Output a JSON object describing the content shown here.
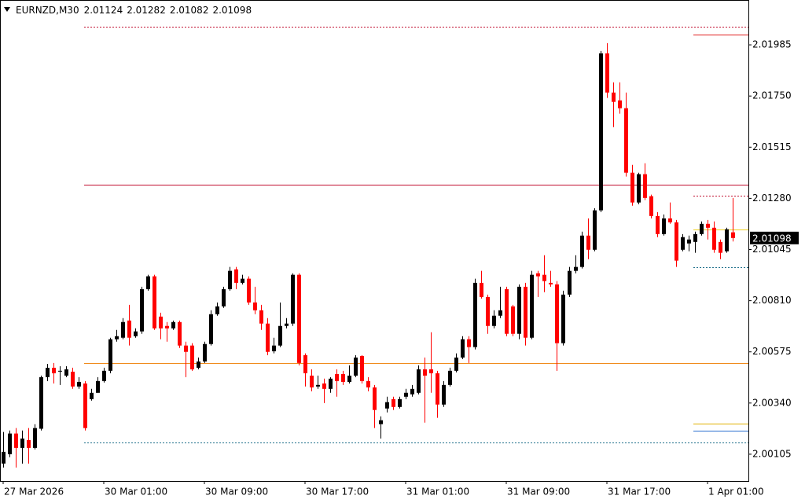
{
  "chart_data": {
    "type": "candlestick",
    "title": "EURNZD,M30",
    "up_color": "#000000",
    "down_color": "#ff0000",
    "ylim": [
      1.99982,
      2.02191
    ],
    "yticks": [
      2.00105,
      {
        "value": 2.0034,
        "label": "2.00340"
      },
      2.00575,
      {
        "value": 2.0081,
        "label": "2.00810"
      },
      2.01045,
      {
        "value": 2.0128,
        "label": "2.01280"
      },
      2.01515,
      {
        "value": 2.0175,
        "label": "2.01750"
      },
      2.01985
    ],
    "categories": [
      "27 Mar 2026",
      null,
      null,
      null,
      null,
      null,
      null,
      null,
      null,
      null,
      null,
      null,
      null,
      null,
      null,
      null,
      "30 Mar 01:00",
      null,
      null,
      null,
      null,
      null,
      null,
      null,
      null,
      null,
      null,
      null,
      null,
      null,
      null,
      null,
      "30 Mar 09:00",
      null,
      null,
      null,
      null,
      null,
      null,
      null,
      null,
      null,
      null,
      null,
      null,
      null,
      null,
      null,
      "30 Mar 17:00",
      null,
      null,
      null,
      null,
      null,
      null,
      null,
      null,
      null,
      null,
      null,
      null,
      null,
      null,
      null,
      "31 Mar 01:00",
      null,
      null,
      null,
      null,
      null,
      null,
      null,
      null,
      null,
      null,
      null,
      null,
      null,
      null,
      null,
      "31 Mar 09:00",
      null,
      null,
      null,
      null,
      null,
      null,
      null,
      null,
      null,
      null,
      null,
      null,
      null,
      null,
      null,
      "31 Mar 17:00",
      null,
      null,
      null,
      null,
      null,
      null,
      null,
      null,
      null,
      null,
      null,
      null,
      null,
      null,
      null,
      "1 Apr 01:00",
      null,
      null,
      null,
      null
    ],
    "open": [
      2.00062,
      2.00105,
      2.002,
      2.00134,
      2.0017,
      2.00134,
      2.00222,
      2.00459,
      2.00502,
      2.00488,
      2.00466,
      2.00484,
      2.00416,
      2.0043,
      2.00358,
      2.00387,
      2.00441,
      2.00488,
      2.00633,
      2.0064,
      2.00719,
      2.00647,
      2.00669,
      2.00863,
      2.00922,
      2.00737,
      2.00694,
      2.00683,
      2.00712,
      2.00604,
      2.00604,
      2.00502,
      2.00531,
      2.00611,
      2.00748,
      2.00784,
      2.00863,
      2.00954,
      2.00892,
      2.00911,
      2.00802,
      2.00766,
      2.00705,
      2.00578,
      2.00604,
      2.00694,
      2.00705,
      2.00929,
      2.0056,
      2.00466,
      2.00416,
      2.0043,
      2.00405,
      2.00473,
      2.00473,
      2.00437,
      2.00466,
      2.00556,
      2.00441,
      2.00412,
      2.00243,
      2.00315,
      2.00358,
      2.00322,
      2.00369,
      2.0038,
      2.00387,
      2.00495,
      2.00495,
      2.00477,
      2.00333,
      2.00423,
      2.00488,
      2.00549,
      2.00633,
      2.00597,
      2.00892,
      2.00827,
      2.00694,
      2.00741,
      2.00863,
      2.00784,
      2.00658,
      2.00874,
      2.0064,
      2.00936,
      2.00929,
      2.00892,
      2.00885,
      2.00615,
      2.00838,
      2.00947,
      2.00965,
      2.01109,
      2.01044,
      2.01225,
      2.01946,
      2.01766,
      2.0173,
      2.01694,
      2.01398,
      2.01261,
      2.01391,
      2.0129,
      2.01199,
      2.01116,
      2.01188,
      2.0117,
      2.01044,
      2.01073,
      2.0108,
      2.01116,
      2.01163,
      2.01145,
      2.0108,
      2.01037,
      2.01124
    ],
    "high": [
      2.00207,
      2.00214,
      2.00225,
      2.00214,
      2.00225,
      2.00243,
      2.00466,
      2.0052,
      2.00524,
      2.00509,
      2.00509,
      2.00502,
      2.00459,
      2.00441,
      2.00405,
      2.00459,
      2.00502,
      2.0064,
      2.00676,
      2.0073,
      2.00791,
      2.00683,
      2.00874,
      2.00929,
      2.00929,
      2.00755,
      2.00712,
      2.00719,
      2.00719,
      2.00622,
      2.00615,
      2.00549,
      2.00622,
      2.00766,
      2.00802,
      2.00874,
      2.00965,
      2.00965,
      2.00929,
      2.00922,
      2.00874,
      2.00791,
      2.0073,
      2.0064,
      2.00802,
      2.0073,
      2.00936,
      2.00936,
      2.00568,
      2.00495,
      2.00466,
      2.00452,
      2.00459,
      2.00495,
      2.00488,
      2.00513,
      2.0056,
      2.0056,
      2.00459,
      2.00423,
      2.00279,
      2.00369,
      2.00369,
      2.00369,
      2.00405,
      2.00423,
      2.00513,
      2.00549,
      2.00665,
      2.00488,
      2.00441,
      2.00502,
      2.00568,
      2.00647,
      2.00647,
      2.00911,
      2.00947,
      2.00838,
      2.00766,
      2.00874,
      2.00874,
      2.00791,
      2.00885,
      2.00892,
      2.00947,
      2.00947,
      2.01019,
      2.00947,
      2.009,
      2.00856,
      2.00965,
      2.01019,
      2.01127,
      2.01188,
      2.01235,
      2.01957,
      2.01993,
      2.01813,
      2.01813,
      2.01766,
      2.01434,
      2.01398,
      2.01441,
      2.01297,
      2.01217,
      2.01206,
      2.01261,
      2.01181,
      2.01116,
      2.01109,
      2.01127,
      2.01174,
      2.01181,
      2.01174,
      2.01091,
      2.01145,
      2.01282
    ],
    "low": [
      2.00044,
      2.00091,
      2.00044,
      2.00062,
      2.00062,
      2.00127,
      2.00214,
      2.00441,
      2.0043,
      2.00423,
      2.00459,
      2.00405,
      2.00405,
      2.00214,
      2.00351,
      2.00387,
      2.00434,
      2.00477,
      2.00622,
      2.00633,
      2.00604,
      2.0064,
      2.00658,
      2.00856,
      2.00676,
      2.00633,
      2.00622,
      2.00676,
      2.00593,
      2.00459,
      2.00488,
      2.00495,
      2.00524,
      2.00604,
      2.00741,
      2.00777,
      2.00856,
      2.00863,
      2.00885,
      2.00791,
      2.00748,
      2.00676,
      2.0056,
      2.00568,
      2.00597,
      2.00683,
      2.00694,
      2.00513,
      2.00416,
      2.00394,
      2.00405,
      2.0034,
      2.00387,
      2.00369,
      2.00423,
      2.0043,
      2.00459,
      2.0043,
      2.00394,
      2.00225,
      2.00177,
      2.00297,
      2.00308,
      2.00315,
      2.00358,
      2.00369,
      2.0038,
      2.0025,
      2.00387,
      2.00272,
      2.00322,
      2.00416,
      2.00481,
      2.00542,
      2.00524,
      2.00586,
      2.0082,
      2.00658,
      2.00683,
      2.0073,
      2.00647,
      2.00647,
      2.00633,
      2.00604,
      2.00633,
      2.00827,
      2.00849,
      2.00874,
      2.00488,
      2.00604,
      2.00827,
      2.00936,
      2.00958,
      2.01001,
      2.01037,
      2.01217,
      2.01741,
      2.01607,
      2.01669,
      2.0138,
      2.01246,
      2.01253,
      2.01272,
      2.01188,
      2.01102,
      2.01109,
      2.01163,
      2.00965,
      2.01037,
      2.01037,
      2.0103,
      2.01109,
      2.01091,
      2.0103,
      2.01001,
      2.0103,
      2.01082
    ],
    "close": [
      2.00116,
      2.002,
      2.00134,
      2.00177,
      2.00134,
      2.00225,
      2.00459,
      2.00502,
      2.00477,
      2.00488,
      2.00495,
      2.00416,
      2.00437,
      2.00225,
      2.00387,
      2.00441,
      2.00488,
      2.00633,
      2.00647,
      2.00712,
      2.0064,
      2.00669,
      2.00863,
      2.00922,
      2.00683,
      2.00683,
      2.00683,
      2.00712,
      2.00604,
      2.00575,
      2.00495,
      2.00531,
      2.00611,
      2.00748,
      2.00784,
      2.00863,
      2.00947,
      2.00892,
      2.00911,
      2.00802,
      2.00766,
      2.00705,
      2.00575,
      2.00604,
      2.00694,
      2.00705,
      2.00929,
      2.00524,
      2.00477,
      2.00412,
      2.00423,
      2.00405,
      2.00452,
      2.00441,
      2.00437,
      2.00466,
      2.00549,
      2.00441,
      2.00412,
      2.00308,
      2.00261,
      2.00344,
      2.00322,
      2.00358,
      2.00387,
      2.00405,
      2.00495,
      2.00466,
      2.00477,
      2.00333,
      2.00423,
      2.00488,
      2.00549,
      2.00633,
      2.00597,
      2.00892,
      2.00827,
      2.00694,
      2.00741,
      2.00766,
      2.00658,
      2.00658,
      2.00874,
      2.0064,
      2.00929,
      2.00922,
      2.009,
      2.00885,
      2.00615,
      2.00838,
      2.00947,
      2.00965,
      2.01109,
      2.01044,
      2.01225,
      2.01946,
      2.01766,
      2.01723,
      2.01694,
      2.01398,
      2.01261,
      2.01391,
      2.01282,
      2.01199,
      2.01116,
      2.01188,
      2.0117,
      2.00994,
      2.01102,
      2.01091,
      2.01116,
      2.01163,
      2.01145,
      2.01044,
      2.0103,
      2.01138,
      2.01098
    ],
    "hlines": [
      {
        "value": 2.01344,
        "color": "#c01030",
        "style": "solid"
      },
      {
        "value": 2.00524,
        "color": "#f08c1e",
        "style": "solid"
      },
      {
        "value": 2.02069,
        "color": "#c01030",
        "style": "dotted"
      },
      {
        "value": 2.00159,
        "color": "#1f6f8b",
        "style": "dotted"
      }
    ],
    "side_levels": [
      {
        "value": 2.02033,
        "color": "#e02020",
        "style": "solid"
      },
      {
        "value": 2.01293,
        "color": "#c01030",
        "style": "dotted"
      },
      {
        "value": 2.01138,
        "color": "#f0d020",
        "style": "solid"
      },
      {
        "value": 2.00965,
        "color": "#1f6f8b",
        "style": "dotted"
      },
      {
        "value": 2.00247,
        "color": "#e0b000",
        "style": "solid"
      },
      {
        "value": 2.00214,
        "color": "#2a6fd0",
        "style": "solid"
      }
    ]
  }
}
